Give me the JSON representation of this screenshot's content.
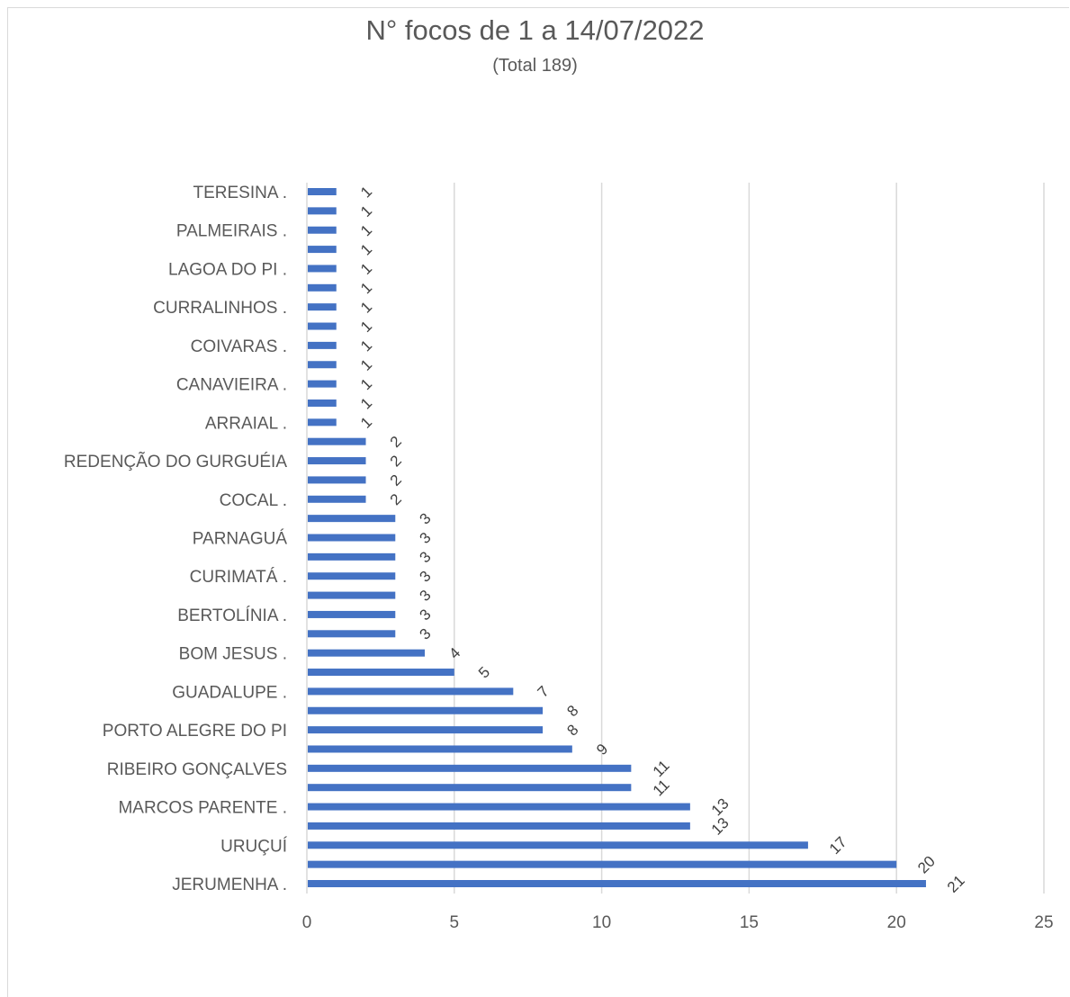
{
  "chart_data": {
    "type": "bar",
    "orientation": "horizontal",
    "title": "N° focos de 1 a 14/07/2022",
    "subtitle": "(Total 189)",
    "categories_visible": [
      "TERESINA .",
      "",
      "PALMEIRAIS .",
      "",
      "LAGOA DO PI .",
      "",
      "CURRALINHOS .",
      "",
      "COIVARAS .",
      "",
      "CANAVIEIRA .",
      "",
      "ARRAIAL .",
      "",
      "REDENÇÃO DO GURGUÉIA",
      "",
      "COCAL .",
      "",
      "PARNAGUÁ",
      "",
      "CURIMATÁ .",
      "",
      "BERTOLÍNIA .",
      "",
      "BOM JESUS .",
      "",
      "GUADALUPE .",
      "",
      "PORTO ALEGRE DO PI",
      "",
      "RIBEIRO GONÇALVES",
      "",
      "MARCOS PARENTE .",
      "",
      "URUÇUÍ",
      "",
      "JERUMENHA ."
    ],
    "values": [
      1,
      1,
      1,
      1,
      1,
      1,
      1,
      1,
      1,
      1,
      1,
      1,
      1,
      2,
      2,
      2,
      2,
      3,
      3,
      3,
      3,
      3,
      3,
      3,
      4,
      5,
      7,
      8,
      8,
      9,
      11,
      11,
      13,
      13,
      17,
      20,
      21
    ],
    "data_labels": [
      "1",
      "1",
      "1",
      "1",
      "1",
      "1",
      "1",
      "1",
      "1",
      "1",
      "1",
      "1",
      "1",
      "2",
      "2",
      "2",
      "2",
      "3",
      "3",
      "3",
      "3",
      "3",
      "3",
      "3",
      "4",
      "5",
      "7",
      "8",
      "8",
      "9",
      "11",
      "11",
      "13",
      "13",
      "17",
      "20",
      "21"
    ],
    "xlim": [
      0,
      25
    ],
    "x_ticks": [
      "0",
      "5",
      "10",
      "15",
      "20",
      "25"
    ],
    "grid": "vertical",
    "legend": "none",
    "bar_color": "#4472c4",
    "grid_color": "#d9d9d9",
    "text_color": "#595959"
  }
}
